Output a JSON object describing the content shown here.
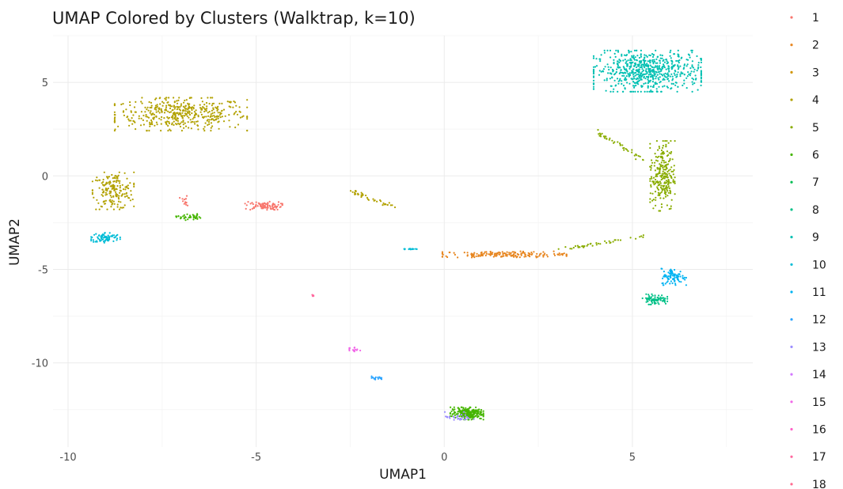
{
  "chart_data": {
    "type": "scatter",
    "title": "UMAP Colored by Clusters (Walktrap, k=10)",
    "xlabel": "UMAP1",
    "ylabel": "UMAP2",
    "xlim": [
      -10.4,
      8.2
    ],
    "ylim": [
      -14.5,
      7.5
    ],
    "x_ticks": [
      -10,
      -5,
      0,
      5
    ],
    "y_ticks": [
      5,
      0,
      -5,
      -10
    ],
    "x_tick_labels": [
      "-10",
      "-5",
      "0",
      "5"
    ],
    "y_tick_labels": [
      "5",
      "0",
      "-5",
      "-10"
    ],
    "grid": true,
    "legend_position": "right",
    "legend": [
      {
        "label": "1",
        "color": "#F8766D"
      },
      {
        "label": "2",
        "color": "#E7851E"
      },
      {
        "label": "3",
        "color": "#D09400"
      },
      {
        "label": "4",
        "color": "#B2A100"
      },
      {
        "label": "5",
        "color": "#89AC00"
      },
      {
        "label": "6",
        "color": "#45B500"
      },
      {
        "label": "7",
        "color": "#00BC51"
      },
      {
        "label": "8",
        "color": "#00C087"
      },
      {
        "label": "9",
        "color": "#00C0B2"
      },
      {
        "label": "10",
        "color": "#00BCD6"
      },
      {
        "label": "11",
        "color": "#00B3F2"
      },
      {
        "label": "12",
        "color": "#29A3FF"
      },
      {
        "label": "13",
        "color": "#9C8DFF"
      },
      {
        "label": "14",
        "color": "#D277FF"
      },
      {
        "label": "15",
        "color": "#F166E8"
      },
      {
        "label": "16",
        "color": "#FF61C7"
      },
      {
        "label": "17",
        "color": "#FF689E"
      },
      {
        "label": "18",
        "color": "#FF6C91"
      }
    ],
    "clusters": [
      {
        "color": "#B2A100",
        "center": [
          -7.0,
          3.3
        ],
        "spread": [
          1.6,
          0.8
        ],
        "count": 450
      },
      {
        "color": "#B2A100",
        "center": [
          -8.8,
          -0.8
        ],
        "spread": [
          0.5,
          0.9
        ],
        "count": 180
      },
      {
        "color": "#00BCD6",
        "center": [
          -9.0,
          -3.3
        ],
        "spread": [
          0.35,
          0.25
        ],
        "count": 80
      },
      {
        "color": "#F8766D",
        "center": [
          -4.8,
          -1.6
        ],
        "spread": [
          0.45,
          0.2
        ],
        "count": 90
      },
      {
        "color": "#45B500",
        "center": [
          -6.8,
          -2.2
        ],
        "spread": [
          0.3,
          0.15
        ],
        "count": 40
      },
      {
        "color": "#F8766D",
        "center": [
          -6.9,
          -1.4
        ],
        "spread": [
          0.12,
          0.3
        ],
        "count": 15
      },
      {
        "color": "#00C0B2",
        "center": [
          5.4,
          5.6
        ],
        "spread": [
          1.3,
          1.0
        ],
        "count": 650
      },
      {
        "color": "#89AC00",
        "center": [
          5.8,
          0.0
        ],
        "spread": [
          0.3,
          1.7
        ],
        "count": 250
      },
      {
        "color": "#00B3F2",
        "center": [
          6.1,
          -5.4
        ],
        "spread": [
          0.3,
          0.4
        ],
        "count": 90
      },
      {
        "color": "#00C087",
        "center": [
          5.6,
          -6.6
        ],
        "spread": [
          0.3,
          0.25
        ],
        "count": 80
      },
      {
        "color": "#E7851E",
        "center": [
          1.6,
          -4.2
        ],
        "spread": [
          1.5,
          0.15
        ],
        "count": 170
      },
      {
        "color": "#45B500",
        "center": [
          0.6,
          -12.7
        ],
        "spread": [
          0.4,
          0.3
        ],
        "count": 220
      },
      {
        "color": "#9C8DFF",
        "center": [
          0.4,
          -12.9
        ],
        "spread": [
          0.35,
          0.25
        ],
        "count": 30
      },
      {
        "color": "#29A3FF",
        "center": [
          -1.8,
          -10.8
        ],
        "spread": [
          0.12,
          0.08
        ],
        "count": 15
      },
      {
        "color": "#F166E8",
        "center": [
          -2.4,
          -9.3
        ],
        "spread": [
          0.15,
          0.15
        ],
        "count": 15
      },
      {
        "color": "#00BCD6",
        "center": [
          -0.9,
          -3.9
        ],
        "spread": [
          0.2,
          0.05
        ],
        "count": 15
      },
      {
        "color": "#FF689E",
        "center": [
          -3.5,
          -6.4
        ],
        "spread": [
          0.03,
          0.05
        ],
        "count": 4
      }
    ],
    "lines": [
      {
        "color": "#B2A100",
        "from": [
          -2.5,
          -0.8
        ],
        "to": [
          -1.3,
          -1.7
        ],
        "count": 40
      },
      {
        "color": "#89AC00",
        "from": [
          3.0,
          -4.0
        ],
        "to": [
          5.3,
          -3.2
        ],
        "count": 40
      },
      {
        "color": "#89AC00",
        "from": [
          4.0,
          2.4
        ],
        "to": [
          5.4,
          0.8
        ],
        "count": 40
      }
    ]
  }
}
